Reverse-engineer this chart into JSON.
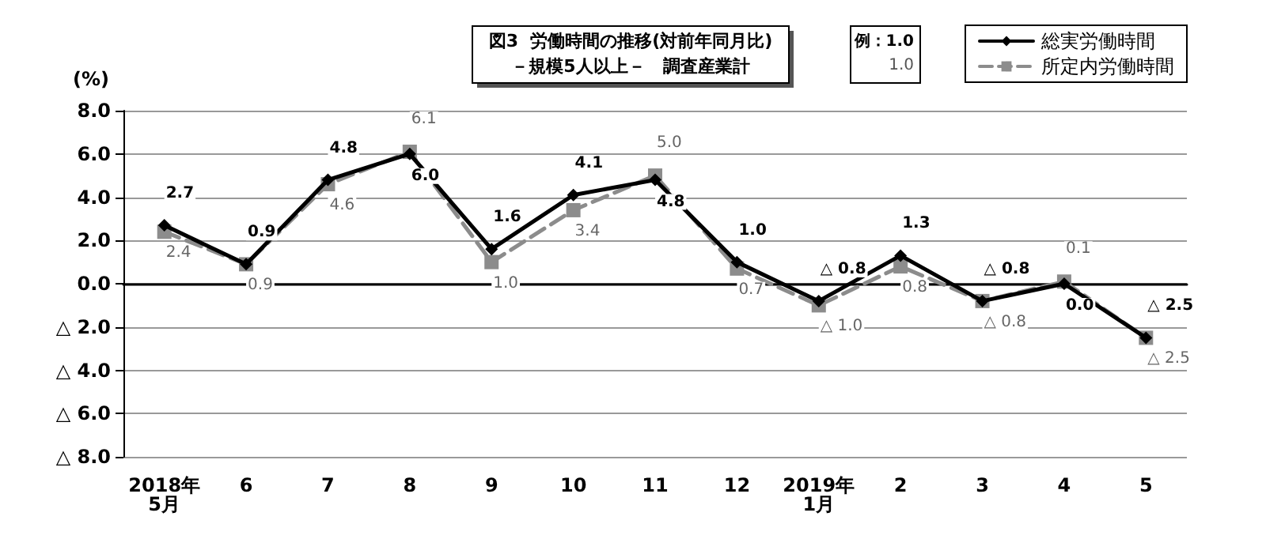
{
  "chart_data": {
    "type": "line",
    "title": "図3  労働時間の推移(対前年同月比)",
    "subtitle": "－規模5人以上－　調査産業計",
    "ylabel": "(%)",
    "categories": [
      "2018年\n5月",
      "6",
      "7",
      "8",
      "9",
      "10",
      "11",
      "12",
      "2019年\n1月",
      "2",
      "3",
      "4",
      "5"
    ],
    "series": [
      {
        "name": "総実労働時間",
        "color": "#000000",
        "marker": "diamond",
        "line_style": "solid",
        "values": [
          2.7,
          0.9,
          4.8,
          6.0,
          1.6,
          4.1,
          4.8,
          1.0,
          -0.8,
          1.3,
          -0.8,
          0.0,
          -2.5
        ],
        "value_labels": [
          "2.7",
          "0.9",
          "4.8",
          "6.0",
          "1.6",
          "4.1",
          "4.8",
          "1.0",
          null,
          "1.3",
          null,
          "0.0",
          null
        ]
      },
      {
        "name": "所定内労働時間",
        "color": "#8c8c8c",
        "marker": "square",
        "line_style": "dashed",
        "values": [
          2.4,
          0.9,
          4.6,
          6.1,
          1.0,
          3.4,
          5.0,
          0.7,
          -1.0,
          0.8,
          -0.8,
          0.1,
          -2.5
        ],
        "value_labels": [
          "2.4",
          "0.9",
          "4.6",
          "6.1",
          "1.0",
          "3.4",
          "5.0",
          "0.7",
          null,
          "0.8",
          null,
          "0.1",
          null
        ]
      }
    ],
    "ylim": [
      -8,
      8
    ],
    "yticks": [
      {
        "value": -8,
        "label": "△ 8.0"
      },
      {
        "value": -6,
        "label": "△ 6.0"
      },
      {
        "value": -4,
        "label": "△ 4.0"
      },
      {
        "value": -2,
        "label": "△ 2.0"
      },
      {
        "value": 0,
        "label": "0.0"
      },
      {
        "value": 2,
        "label": "2.0"
      },
      {
        "value": 4,
        "label": "4.0"
      },
      {
        "value": 6,
        "label": "6.0"
      },
      {
        "value": 8,
        "label": "8.0"
      }
    ],
    "grid": "y",
    "legend": "top right",
    "annotations": [
      "例：1.0",
      "1.0",
      {
        "text": "△ 0.8",
        "x": "2019年\n1月",
        "y": -0.8
      },
      {
        "text": "△ 1.0",
        "x": "2019年\n1月",
        "y": -1.0
      },
      {
        "text": "△ 0.8",
        "x": "3",
        "y": -0.8
      },
      {
        "text": "△ 0.8",
        "x": "3",
        "y": -0.8
      },
      {
        "text": "△ 2.5",
        "x": "5",
        "y": -2.5
      },
      {
        "text": "△ 2.5",
        "x": "5",
        "y": -2.5
      }
    ]
  }
}
